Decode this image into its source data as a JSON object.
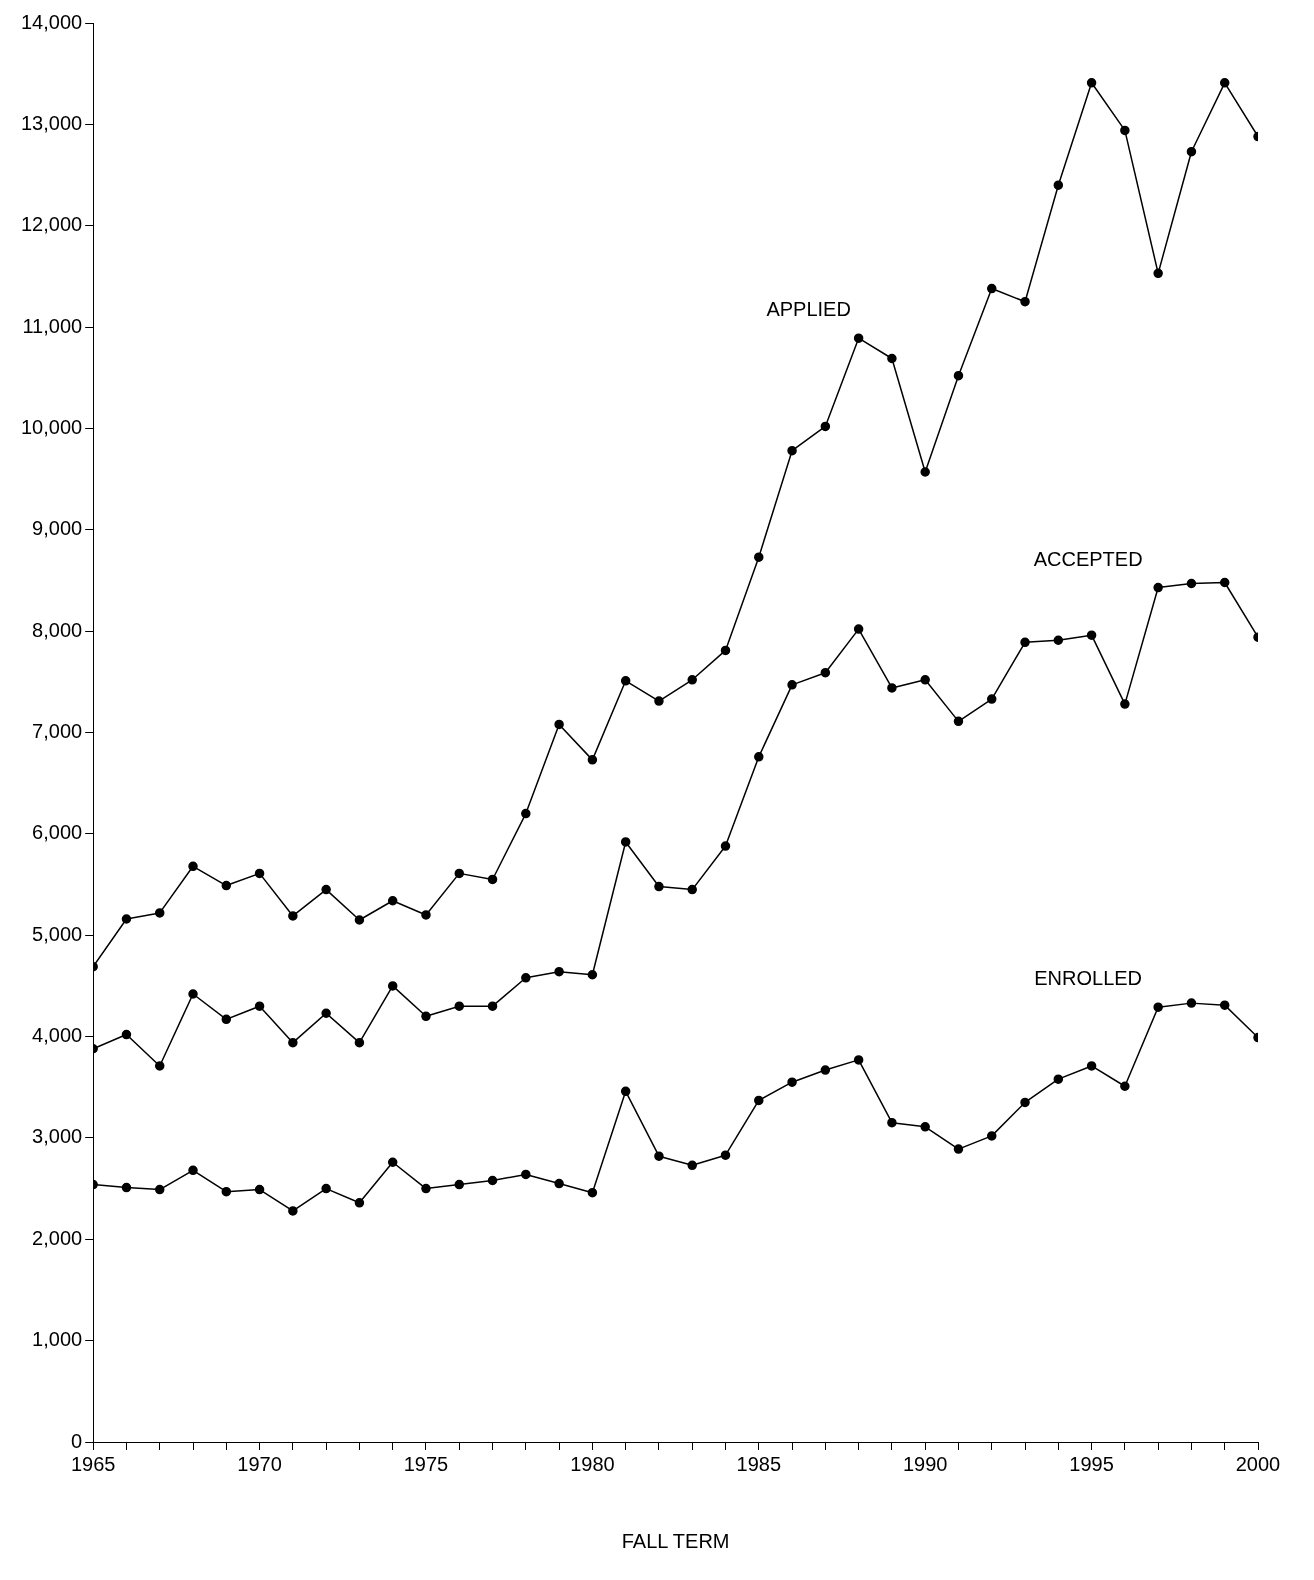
{
  "chart_data": {
    "type": "line",
    "xlabel": "FALL TERM",
    "x": [
      1965,
      1966,
      1967,
      1968,
      1969,
      1970,
      1971,
      1972,
      1973,
      1974,
      1975,
      1976,
      1977,
      1978,
      1979,
      1980,
      1981,
      1982,
      1983,
      1984,
      1985,
      1986,
      1987,
      1988,
      1989,
      1990,
      1991,
      1992,
      1993,
      1994,
      1995,
      1996,
      1997,
      1998,
      1999,
      2000
    ],
    "series": [
      {
        "name": "APPLIED",
        "color": "#000000",
        "values": [
          4690,
          5160,
          5220,
          5680,
          5490,
          5610,
          5190,
          5450,
          5150,
          5340,
          5200,
          5610,
          5550,
          6200,
          7080,
          6730,
          7510,
          7310,
          7520,
          7810,
          8730,
          9780,
          10020,
          10890,
          10690,
          9570,
          10520,
          11380,
          11250,
          12400,
          13410,
          12940,
          11530,
          12730,
          13410,
          12880
        ]
      },
      {
        "name": "ACCEPTED",
        "color": "#000000",
        "values": [
          3880,
          4020,
          3710,
          4420,
          4170,
          4300,
          3940,
          4230,
          3940,
          4500,
          4200,
          4300,
          4300,
          4580,
          4640,
          4610,
          5920,
          5480,
          5450,
          5880,
          6760,
          7470,
          7590,
          8020,
          7440,
          7520,
          7110,
          7330,
          7890,
          7910,
          7960,
          7280,
          8430,
          8470,
          8480,
          7940
        ]
      },
      {
        "name": "ENROLLED",
        "color": "#000000",
        "values": [
          2540,
          2510,
          2490,
          2680,
          2470,
          2490,
          2280,
          2500,
          2360,
          2760,
          2500,
          2540,
          2580,
          2640,
          2550,
          2460,
          3460,
          2820,
          2730,
          2830,
          3370,
          3550,
          3670,
          3770,
          3150,
          3110,
          2890,
          3020,
          3350,
          3580,
          3710,
          3510,
          4290,
          4330,
          4310,
          3990
        ]
      }
    ],
    "xlim": [
      1965,
      2000
    ],
    "xticks": [
      1965,
      {
        "value": 1966,
        "label": null
      },
      {
        "value": 1967,
        "label": null
      },
      {
        "value": 1968,
        "label": null
      },
      {
        "value": 1969,
        "label": null
      },
      1970,
      {
        "value": 1971,
        "label": null
      },
      {
        "value": 1972,
        "label": null
      },
      {
        "value": 1973,
        "label": null
      },
      {
        "value": 1974,
        "label": null
      },
      1975,
      {
        "value": 1976,
        "label": null
      },
      {
        "value": 1977,
        "label": null
      },
      {
        "value": 1978,
        "label": null
      },
      {
        "value": 1979,
        "label": null
      },
      1980,
      {
        "value": 1981,
        "label": null
      },
      {
        "value": 1982,
        "label": null
      },
      {
        "value": 1983,
        "label": null
      },
      {
        "value": 1984,
        "label": null
      },
      1985,
      {
        "value": 1986,
        "label": null
      },
      {
        "value": 1987,
        "label": null
      },
      {
        "value": 1988,
        "label": null
      },
      {
        "value": 1989,
        "label": null
      },
      1990,
      {
        "value": 1991,
        "label": null
      },
      {
        "value": 1992,
        "label": null
      },
      {
        "value": 1993,
        "label": null
      },
      {
        "value": 1994,
        "label": null
      },
      1995,
      {
        "value": 1996,
        "label": null
      },
      {
        "value": 1997,
        "label": null
      },
      {
        "value": 1998,
        "label": null
      },
      {
        "value": 1999,
        "label": null
      },
      2000
    ],
    "ylim": [
      0,
      14000
    ],
    "yticks": [
      0,
      {
        "value": 1000,
        "label": "1,000"
      },
      {
        "value": 2000,
        "label": "2,000"
      },
      {
        "value": 3000,
        "label": "3,000"
      },
      {
        "value": 4000,
        "label": "4,000"
      },
      {
        "value": 5000,
        "label": "5,000"
      },
      {
        "value": 6000,
        "label": "6,000"
      },
      {
        "value": 7000,
        "label": "7,000"
      },
      {
        "value": 8000,
        "label": "8,000"
      },
      {
        "value": 9000,
        "label": "9,000"
      },
      {
        "value": 10000,
        "label": "10,000"
      },
      {
        "value": 11000,
        "label": "11,000"
      },
      {
        "value": 12000,
        "label": "12,000"
      },
      {
        "value": 13000,
        "label": "13,000"
      },
      {
        "value": 14000,
        "label": "14,000"
      }
    ],
    "grid": false,
    "legend": false,
    "marker": "circle",
    "line_style": "solid"
  }
}
